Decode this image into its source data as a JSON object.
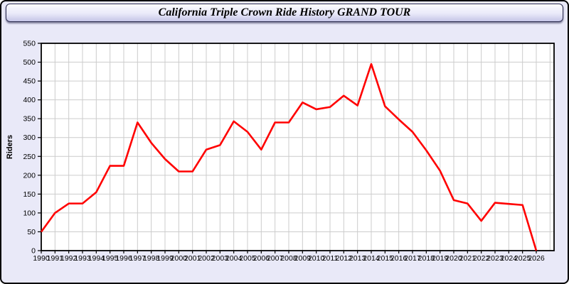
{
  "window": {
    "background": "#e9e9f8",
    "border_color": "#000000"
  },
  "title_bar": {
    "text": "California Triple Crown Ride History GRAND TOUR",
    "gradient_top": "#fdfdff",
    "gradient_bottom": "#c5c5e7",
    "text_color": "#000000"
  },
  "chart_data": {
    "type": "line",
    "title": "California Triple Crown Ride History GRAND TOUR",
    "xlabel": "",
    "ylabel": "Riders",
    "x": [
      1990,
      1991,
      1992,
      1993,
      1994,
      1995,
      1996,
      1997,
      1998,
      1999,
      2000,
      2001,
      2002,
      2003,
      2004,
      2005,
      2006,
      2007,
      2008,
      2009,
      2010,
      2011,
      2012,
      2013,
      2014,
      2015,
      2016,
      2017,
      2018,
      2019,
      2020,
      2021,
      2022,
      2023,
      2024,
      2025,
      2026
    ],
    "values": [
      50,
      100,
      125,
      125,
      155,
      225,
      225,
      340,
      286,
      243,
      210,
      210,
      268,
      280,
      343,
      315,
      268,
      340,
      340,
      393,
      375,
      381,
      411,
      385,
      495,
      383,
      348,
      315,
      266,
      212,
      134,
      125,
      79,
      127,
      124,
      121,
      0
    ],
    "ylim": [
      0,
      550
    ],
    "ytick_step": 50,
    "grid": true,
    "legend": "none",
    "line_color": "#ff0000",
    "grid_color": "#cccccc",
    "plot_bg": "#ffffff",
    "axis_color": "#000000",
    "tick_label_color": "#000000"
  }
}
